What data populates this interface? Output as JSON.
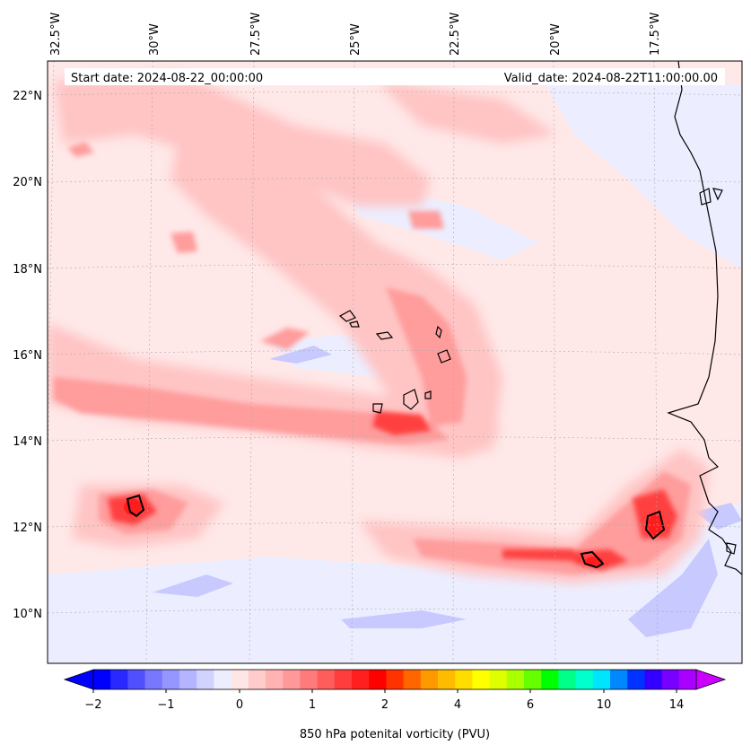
{
  "map": {
    "start_label": "Start date: 2024-08-22_00:00:00",
    "valid_label": "Valid_date: 2024-08-22T11:00:00.00",
    "lon_labels": [
      "32.5°W",
      "30°W",
      "27.5°W",
      "25°W",
      "22.5°W",
      "20°W",
      "17.5°W"
    ],
    "lat_labels": [
      "22°N",
      "20°N",
      "18°N",
      "16°N",
      "14°N",
      "12°N",
      "10°N"
    ]
  },
  "colorbar": {
    "label": "850 hPa potenital vorticity (PVU)",
    "tick_labels": [
      "−2",
      "−1",
      "0",
      "1",
      "2",
      "4",
      "6",
      "10",
      "14"
    ],
    "colors": [
      "#0000ff",
      "#2828ff",
      "#5050ff",
      "#7878ff",
      "#9696ff",
      "#b4b4ff",
      "#d2d2ff",
      "#ecedff",
      "#ffe6e6",
      "#ffcccc",
      "#ffb3b3",
      "#ff9999",
      "#ff7a7a",
      "#ff5c5c",
      "#ff3d3d",
      "#ff1f1f",
      "#ff0000",
      "#ff3300",
      "#ff6600",
      "#ff9900",
      "#ffbb00",
      "#ffdd00",
      "#ffff00",
      "#ddff00",
      "#aaff00",
      "#66ff00",
      "#00ff00",
      "#00ff88",
      "#00ffcc",
      "#00e5ff",
      "#0088ff",
      "#0033ff",
      "#3300ff",
      "#7700ff",
      "#aa00ff"
    ]
  }
}
